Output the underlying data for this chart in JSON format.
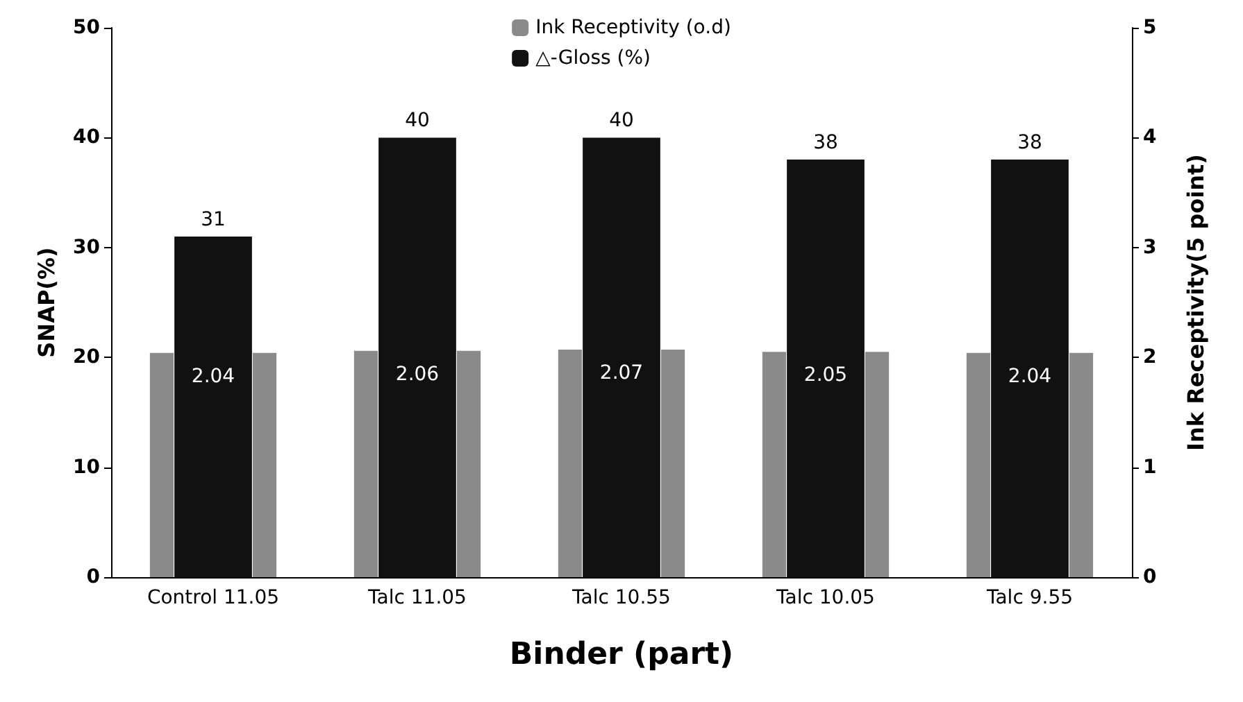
{
  "chart_data": {
    "type": "bar",
    "xlabel": "Binder (part)",
    "ylabel": "SNAP(%)",
    "y2label": "Ink Receptivity(5 point)",
    "categories": [
      "Control 11.05",
      "Talc 11.05",
      "Talc 10.55",
      "Talc 10.05",
      "Talc 9.55"
    ],
    "series": [
      {
        "name": "Ink Receptivity (o.d)",
        "color": "#8a8a8a",
        "values": [
          2.04,
          2.06,
          2.07,
          2.05,
          2.04
        ],
        "axis": "y2"
      },
      {
        "name": "△-Gloss (%)",
        "color": "#111111",
        "values": [
          31,
          40,
          40,
          38,
          38
        ]
      }
    ],
    "ylim": [
      0,
      50
    ],
    "yticks": [
      0,
      10,
      20,
      30,
      40,
      50
    ],
    "y2lim": [
      0,
      5
    ],
    "y2ticks": [
      0,
      1,
      2,
      3,
      4,
      5
    ],
    "data_labels": true,
    "legend": "top",
    "grid": false
  }
}
